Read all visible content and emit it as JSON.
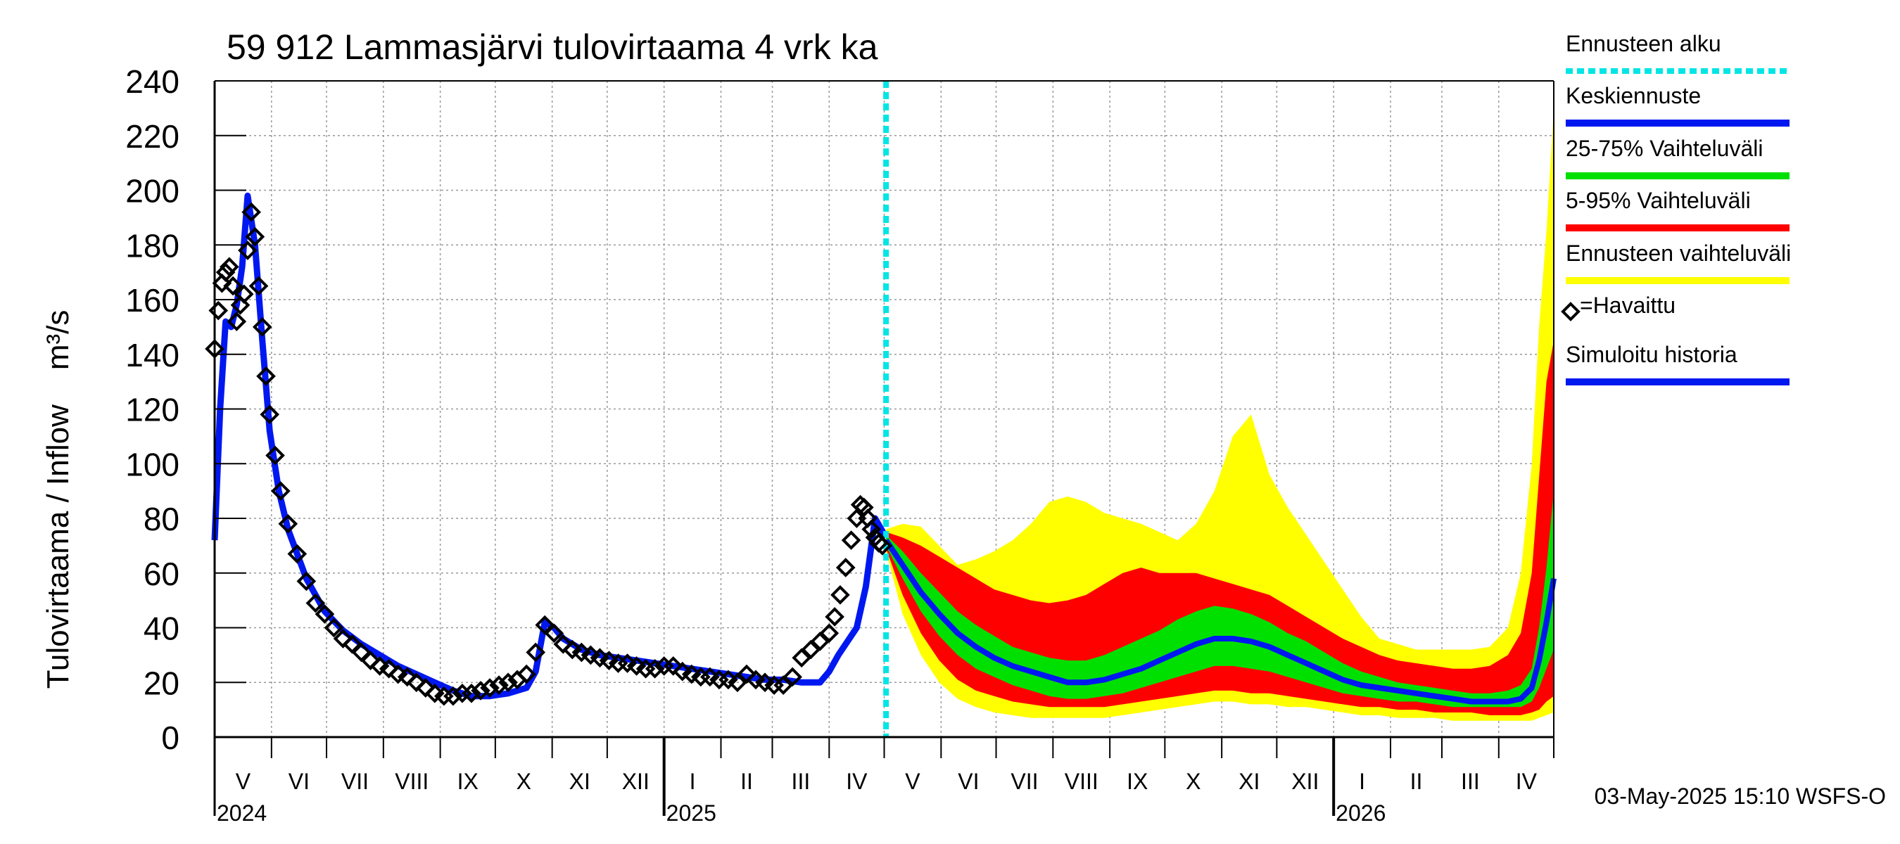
{
  "chart_data": {
    "type": "line",
    "title": "59 912 Lammasjärvi tulovirtaama 4 vrk ka",
    "ylabel": "Tulovirtaama / Inflow    m³/s",
    "ylim": [
      0,
      240
    ],
    "yticks": [
      0,
      20,
      40,
      60,
      80,
      100,
      120,
      140,
      160,
      180,
      200,
      220,
      240
    ],
    "x_range_days": [
      0,
      730
    ],
    "forecast_start_day": 366,
    "month_labels": [
      {
        "label": "V",
        "start": 0,
        "end": 31
      },
      {
        "label": "VI",
        "start": 31,
        "end": 61
      },
      {
        "label": "VII",
        "start": 61,
        "end": 92
      },
      {
        "label": "VIII",
        "start": 92,
        "end": 123
      },
      {
        "label": "IX",
        "start": 123,
        "end": 153
      },
      {
        "label": "X",
        "start": 153,
        "end": 184
      },
      {
        "label": "XI",
        "start": 184,
        "end": 214
      },
      {
        "label": "XII",
        "start": 214,
        "end": 245
      },
      {
        "label": "I",
        "start": 245,
        "end": 276
      },
      {
        "label": "II",
        "start": 276,
        "end": 304
      },
      {
        "label": "III",
        "start": 304,
        "end": 335
      },
      {
        "label": "IV",
        "start": 335,
        "end": 365
      },
      {
        "label": "V",
        "start": 365,
        "end": 396
      },
      {
        "label": "VI",
        "start": 396,
        "end": 426
      },
      {
        "label": "VII",
        "start": 426,
        "end": 457
      },
      {
        "label": "VIII",
        "start": 457,
        "end": 488
      },
      {
        "label": "IX",
        "start": 488,
        "end": 518
      },
      {
        "label": "X",
        "start": 518,
        "end": 549
      },
      {
        "label": "XI",
        "start": 549,
        "end": 579
      },
      {
        "label": "XII",
        "start": 579,
        "end": 610
      },
      {
        "label": "I",
        "start": 610,
        "end": 641
      },
      {
        "label": "II",
        "start": 641,
        "end": 669
      },
      {
        "label": "III",
        "start": 669,
        "end": 700
      },
      {
        "label": "IV",
        "start": 700,
        "end": 730
      }
    ],
    "year_labels": [
      {
        "label": "2024",
        "day": 0
      },
      {
        "label": "2025",
        "day": 245
      },
      {
        "label": "2026",
        "day": 610
      }
    ],
    "year_dividers": [
      245,
      610
    ],
    "observed_x": [
      0,
      2,
      4,
      6,
      8,
      10,
      12,
      14,
      16,
      18,
      20,
      22,
      24,
      26,
      28,
      30,
      33,
      36,
      40,
      45,
      50,
      55,
      60,
      65,
      70,
      75,
      80,
      85,
      90,
      95,
      100,
      105,
      110,
      115,
      120,
      125,
      130,
      135,
      140,
      145,
      150,
      155,
      160,
      165,
      170,
      175,
      180,
      185,
      190,
      195,
      200,
      205,
      210,
      215,
      220,
      225,
      230,
      235,
      240,
      245,
      250,
      255,
      260,
      265,
      270,
      275,
      280,
      285,
      290,
      295,
      300,
      305,
      310,
      315,
      320,
      325,
      330,
      335,
      338,
      341,
      344,
      347,
      350,
      352,
      354,
      356,
      358,
      360,
      362,
      364
    ],
    "observed_y": [
      142,
      156,
      166,
      170,
      172,
      165,
      152,
      158,
      162,
      178,
      192,
      183,
      165,
      150,
      132,
      118,
      103,
      90,
      78,
      67,
      57,
      49,
      45,
      40,
      36,
      34,
      31,
      28,
      26,
      25,
      23,
      22,
      20,
      18,
      16,
      15,
      15,
      16,
      16,
      17,
      18,
      19,
      20,
      21,
      23,
      31,
      41,
      38,
      34,
      32,
      31,
      30,
      29,
      28,
      27,
      27,
      26,
      25,
      25,
      26,
      26,
      24,
      23,
      22,
      22,
      21,
      21,
      20,
      23,
      21,
      20,
      19,
      19,
      22,
      29,
      32,
      35,
      38,
      44,
      52,
      62,
      72,
      80,
      85,
      84,
      80,
      76,
      73,
      71,
      70
    ],
    "simulated_x": [
      0,
      3,
      6,
      9,
      12,
      15,
      18,
      22,
      26,
      30,
      35,
      40,
      50,
      60,
      70,
      80,
      90,
      100,
      110,
      120,
      130,
      140,
      150,
      160,
      170,
      175,
      180,
      185,
      190,
      200,
      210,
      220,
      230,
      240,
      250,
      260,
      270,
      280,
      290,
      300,
      310,
      320,
      330,
      335,
      340,
      345,
      350,
      355,
      360,
      366
    ],
    "simulated_y": [
      72,
      120,
      152,
      150,
      158,
      172,
      198,
      180,
      145,
      112,
      90,
      76,
      58,
      46,
      39,
      34,
      30,
      26,
      23,
      20,
      17,
      15,
      15,
      16,
      18,
      24,
      42,
      40,
      36,
      32,
      30,
      29,
      28,
      27,
      26,
      25,
      24,
      23,
      22,
      21,
      21,
      20,
      20,
      24,
      30,
      35,
      40,
      55,
      80,
      73
    ],
    "band_x": [
      366,
      375,
      385,
      395,
      405,
      415,
      425,
      435,
      445,
      455,
      465,
      475,
      485,
      495,
      505,
      515,
      525,
      535,
      545,
      555,
      565,
      575,
      585,
      595,
      605,
      615,
      625,
      635,
      645,
      655,
      665,
      675,
      685,
      695,
      705,
      712,
      718,
      722,
      726,
      730
    ],
    "median": [
      72,
      63,
      53,
      45,
      38,
      33,
      29,
      26,
      24,
      22,
      20,
      20,
      21,
      23,
      25,
      28,
      31,
      34,
      36,
      36,
      35,
      33,
      30,
      27,
      24,
      21,
      19,
      18,
      17,
      16,
      15,
      14,
      13,
      13,
      13,
      14,
      18,
      28,
      42,
      58
    ],
    "p25": [
      70,
      58,
      46,
      37,
      30,
      25,
      22,
      19,
      17,
      15,
      14,
      14,
      15,
      16,
      18,
      20,
      22,
      24,
      26,
      26,
      25,
      24,
      22,
      20,
      18,
      16,
      15,
      14,
      13,
      13,
      12,
      11,
      11,
      11,
      11,
      11,
      13,
      18,
      25,
      32
    ],
    "p75": [
      74,
      68,
      60,
      53,
      46,
      41,
      37,
      33,
      31,
      29,
      28,
      28,
      30,
      33,
      36,
      39,
      43,
      46,
      48,
      47,
      45,
      42,
      38,
      35,
      31,
      27,
      24,
      22,
      20,
      19,
      18,
      17,
      16,
      16,
      17,
      19,
      25,
      40,
      62,
      90
    ],
    "p5": [
      69,
      52,
      38,
      28,
      21,
      17,
      15,
      13,
      12,
      11,
      11,
      11,
      11,
      12,
      13,
      14,
      15,
      16,
      17,
      17,
      16,
      16,
      15,
      14,
      13,
      12,
      11,
      11,
      10,
      10,
      9,
      9,
      9,
      8,
      8,
      8,
      9,
      10,
      13,
      15
    ],
    "p95": [
      75,
      73,
      70,
      66,
      62,
      58,
      54,
      52,
      50,
      49,
      50,
      52,
      56,
      60,
      62,
      60,
      60,
      60,
      58,
      56,
      54,
      52,
      48,
      44,
      40,
      36,
      33,
      30,
      28,
      27,
      26,
      25,
      25,
      26,
      30,
      38,
      60,
      95,
      130,
      145
    ],
    "pmin": [
      68,
      45,
      30,
      20,
      14,
      11,
      9,
      8,
      7,
      7,
      7,
      7,
      7,
      8,
      9,
      10,
      11,
      12,
      13,
      13,
      12,
      12,
      11,
      11,
      10,
      9,
      8,
      8,
      7,
      7,
      7,
      6,
      6,
      6,
      6,
      6,
      6,
      7,
      8,
      9
    ],
    "pmax": [
      76,
      78,
      77,
      70,
      63,
      65,
      68,
      72,
      78,
      86,
      88,
      86,
      82,
      80,
      78,
      75,
      72,
      78,
      90,
      110,
      118,
      96,
      84,
      74,
      64,
      54,
      44,
      36,
      34,
      32,
      32,
      32,
      32,
      33,
      40,
      60,
      100,
      150,
      185,
      230
    ],
    "colors": {
      "forecast_start": "#00e5e5",
      "median": "#0018f0",
      "p25_75": "#00e000",
      "p5_95": "#ff0000",
      "range": "#ffff00",
      "observed": "#000000",
      "simulated": "#0018f0"
    }
  },
  "legend": [
    {
      "label": "Ennusteen alku",
      "style": "dotted",
      "color": "#00e5e5"
    },
    {
      "label": "Keskiennuste",
      "style": "line",
      "color": "#0018f0"
    },
    {
      "label": "25-75% Vaihteluväli",
      "style": "line",
      "color": "#00e000"
    },
    {
      "label": "5-95% Vaihteluväli",
      "style": "line",
      "color": "#ff0000"
    },
    {
      "label": "Ennusteen vaihteluväli",
      "style": "line",
      "color": "#ffff00"
    },
    {
      "label": "=Havaittu",
      "style": "marker",
      "color": "#000000"
    },
    {
      "label": "Simuloitu historia",
      "style": "line",
      "color": "#0018f0"
    }
  ],
  "footer": "03-May-2025 15:10 WSFS-O"
}
